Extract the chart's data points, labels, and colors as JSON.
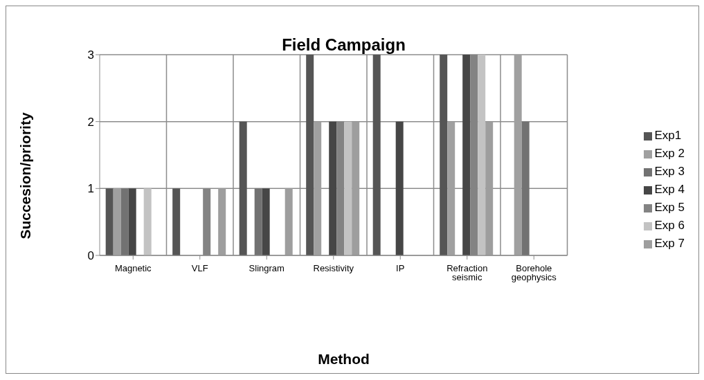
{
  "chart_data": {
    "type": "bar",
    "title": "Field Campaign",
    "xlabel": "Method",
    "ylabel": "Succesion/priority",
    "categories": [
      "Magnetic",
      "VLF",
      "Slingram",
      "Resistivity",
      "IP",
      "Refraction seismic",
      "Borehole geophysics"
    ],
    "series": [
      {
        "name": "Exp1",
        "color": "#555555",
        "values": [
          1,
          1,
          2,
          3,
          3,
          3,
          0
        ]
      },
      {
        "name": "Exp 2",
        "color": "#a0a0a0",
        "values": [
          1,
          0,
          0,
          2,
          0,
          2,
          3
        ]
      },
      {
        "name": "Exp 3",
        "color": "#727272",
        "values": [
          1,
          0,
          1,
          0,
          0,
          0,
          2
        ]
      },
      {
        "name": "Exp 4",
        "color": "#464646",
        "values": [
          1,
          0,
          1,
          2,
          2,
          3,
          0
        ]
      },
      {
        "name": "Exp 5",
        "color": "#838383",
        "values": [
          0,
          1,
          0,
          2,
          0,
          3,
          0
        ]
      },
      {
        "name": "Exp 6",
        "color": "#c3c3c3",
        "values": [
          1,
          0,
          0,
          2,
          0,
          3,
          0
        ]
      },
      {
        "name": "Exp 7",
        "color": "#9e9e9e",
        "values": [
          0,
          1,
          1,
          2,
          0,
          2,
          0
        ]
      }
    ],
    "ylim": [
      0,
      3
    ],
    "yticks": [
      0,
      1,
      2,
      3
    ],
    "grid": true,
    "legend": "right"
  }
}
